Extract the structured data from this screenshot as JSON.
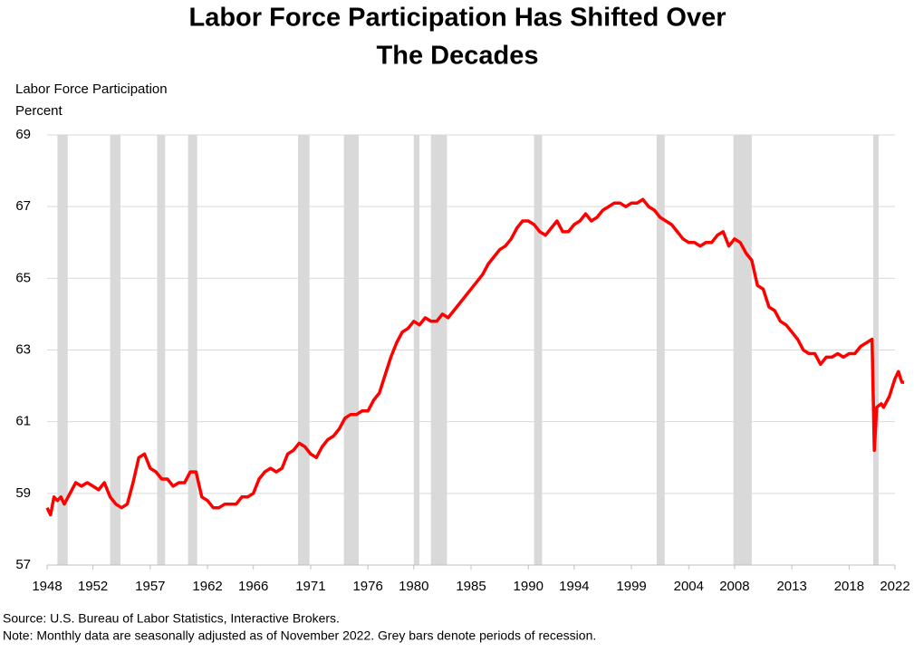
{
  "chart_data": {
    "type": "line",
    "title": [
      "Labor Force Participation Has Shifted Over",
      "The Decades"
    ],
    "y_label": [
      "Labor Force Participation",
      "Percent"
    ],
    "notes": [
      "Source: U.S. Bureau of Labor Statistics, Interactive Brokers.",
      "Note: Monthly data are seasonally adjusted as of November 2022. Grey bars denote periods of recession."
    ],
    "x": [
      1948.0,
      1948.3,
      1948.6,
      1948.9,
      1949.2,
      1949.5,
      1950.0,
      1950.5,
      1951.0,
      1951.5,
      1952.0,
      1952.5,
      1953.0,
      1953.5,
      1954.0,
      1954.5,
      1955.0,
      1955.5,
      1956.0,
      1956.5,
      1957.0,
      1957.5,
      1958.0,
      1958.5,
      1959.0,
      1959.5,
      1960.0,
      1960.5,
      1961.0,
      1961.5,
      1962.0,
      1962.5,
      1963.0,
      1963.5,
      1964.0,
      1964.5,
      1965.0,
      1965.5,
      1966.0,
      1966.5,
      1967.0,
      1967.5,
      1968.0,
      1968.5,
      1969.0,
      1969.5,
      1970.0,
      1970.5,
      1971.0,
      1971.5,
      1972.0,
      1972.5,
      1973.0,
      1973.5,
      1974.0,
      1974.5,
      1975.0,
      1975.5,
      1976.0,
      1976.5,
      1977.0,
      1977.5,
      1978.0,
      1978.5,
      1979.0,
      1979.5,
      1980.0,
      1980.5,
      1981.0,
      1981.5,
      1982.0,
      1982.5,
      1983.0,
      1983.5,
      1984.0,
      1984.5,
      1985.0,
      1985.5,
      1986.0,
      1986.5,
      1987.0,
      1987.5,
      1988.0,
      1988.5,
      1989.0,
      1989.5,
      1990.0,
      1990.5,
      1991.0,
      1991.5,
      1992.0,
      1992.5,
      1993.0,
      1993.5,
      1994.0,
      1994.5,
      1995.0,
      1995.5,
      1996.0,
      1996.5,
      1997.0,
      1997.5,
      1998.0,
      1998.5,
      1999.0,
      1999.5,
      2000.0,
      2000.5,
      2001.0,
      2001.5,
      2002.0,
      2002.5,
      2003.0,
      2003.5,
      2004.0,
      2004.5,
      2005.0,
      2005.5,
      2006.0,
      2006.5,
      2007.0,
      2007.5,
      2008.0,
      2008.5,
      2009.0,
      2009.5,
      2010.0,
      2010.5,
      2011.0,
      2011.5,
      2012.0,
      2012.5,
      2013.0,
      2013.5,
      2014.0,
      2014.5,
      2015.0,
      2015.5,
      2016.0,
      2016.5,
      2017.0,
      2017.5,
      2018.0,
      2018.5,
      2019.0,
      2019.5,
      2020.0,
      2020.2,
      2020.4,
      2020.8,
      2021.0,
      2021.5,
      2022.0,
      2022.3,
      2022.6,
      2022.8
    ],
    "series": [
      {
        "name": "Labor Force Participation",
        "color": "#ff0000",
        "values": [
          58.6,
          58.4,
          58.9,
          58.8,
          58.9,
          58.7,
          59.0,
          59.3,
          59.2,
          59.3,
          59.2,
          59.1,
          59.3,
          58.9,
          58.7,
          58.6,
          58.7,
          59.3,
          60.0,
          60.1,
          59.7,
          59.6,
          59.4,
          59.4,
          59.2,
          59.3,
          59.3,
          59.6,
          59.6,
          58.9,
          58.8,
          58.6,
          58.6,
          58.7,
          58.7,
          58.7,
          58.9,
          58.9,
          59.0,
          59.4,
          59.6,
          59.7,
          59.6,
          59.7,
          60.1,
          60.2,
          60.4,
          60.3,
          60.1,
          60.0,
          60.3,
          60.5,
          60.6,
          60.8,
          61.1,
          61.2,
          61.2,
          61.3,
          61.3,
          61.6,
          61.8,
          62.3,
          62.8,
          63.2,
          63.5,
          63.6,
          63.8,
          63.7,
          63.9,
          63.8,
          63.8,
          64.0,
          63.9,
          64.1,
          64.3,
          64.5,
          64.7,
          64.9,
          65.1,
          65.4,
          65.6,
          65.8,
          65.9,
          66.1,
          66.4,
          66.6,
          66.6,
          66.5,
          66.3,
          66.2,
          66.4,
          66.6,
          66.3,
          66.3,
          66.5,
          66.6,
          66.8,
          66.6,
          66.7,
          66.9,
          67.0,
          67.1,
          67.1,
          67.0,
          67.1,
          67.1,
          67.2,
          67.0,
          66.9,
          66.7,
          66.6,
          66.5,
          66.3,
          66.1,
          66.0,
          66.0,
          65.9,
          66.0,
          66.0,
          66.2,
          66.3,
          65.9,
          66.1,
          66.0,
          65.7,
          65.5,
          64.8,
          64.7,
          64.2,
          64.1,
          63.8,
          63.7,
          63.5,
          63.3,
          63.0,
          62.9,
          62.9,
          62.6,
          62.8,
          62.8,
          62.9,
          62.8,
          62.9,
          62.9,
          63.1,
          63.2,
          63.3,
          60.2,
          61.4,
          61.5,
          61.4,
          61.7,
          62.2,
          62.4,
          62.1,
          62.1
        ]
      }
    ],
    "recessions": [
      [
        1948.9,
        1949.8
      ],
      [
        1953.5,
        1954.4
      ],
      [
        1957.6,
        1958.3
      ],
      [
        1960.3,
        1961.1
      ],
      [
        1969.9,
        1970.9
      ],
      [
        1973.9,
        1975.2
      ],
      [
        1980.0,
        1980.5
      ],
      [
        1981.5,
        1982.9
      ],
      [
        1990.5,
        1991.2
      ],
      [
        2001.2,
        2001.9
      ],
      [
        2007.9,
        2009.5
      ],
      [
        2020.1,
        2020.3
      ]
    ],
    "recession_color": "#d9d9d9",
    "xlim": [
      1948,
      2022
    ],
    "xticks": [
      1948,
      1952,
      1957,
      1962,
      1966,
      1971,
      1976,
      1980,
      1985,
      1990,
      1994,
      1999,
      2004,
      2008,
      2013,
      2018,
      2022
    ],
    "ylim": [
      57,
      69
    ],
    "yticks": [
      57,
      59,
      61,
      63,
      65,
      67,
      69
    ],
    "grid": true
  }
}
